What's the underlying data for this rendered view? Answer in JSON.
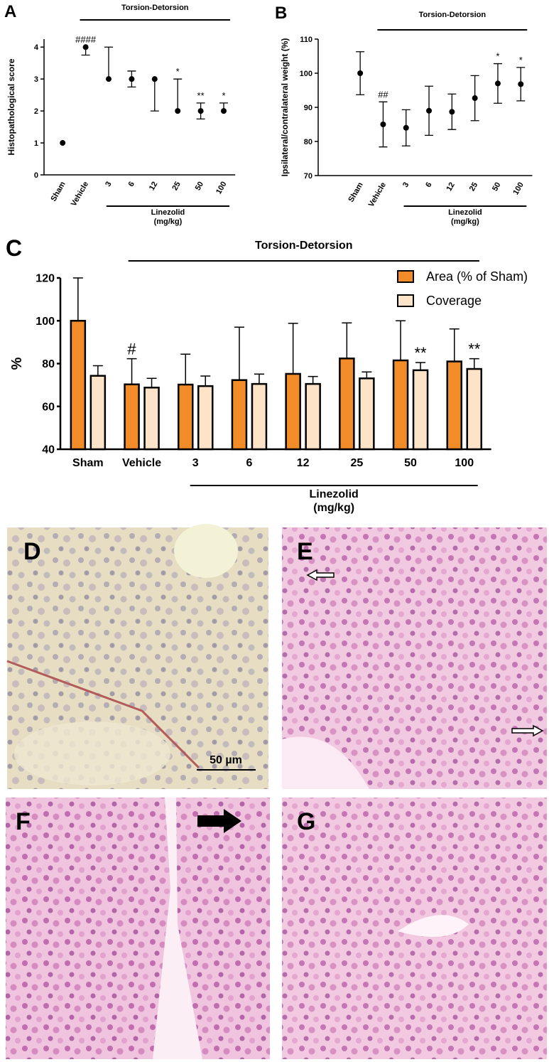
{
  "chart_data": [
    {
      "type": "scatter",
      "panel_label": "A",
      "title": "Torsion-Detorsion",
      "ylabel": "Histopathological score",
      "categories": [
        "Sham",
        "Vehicle",
        "3",
        "6",
        "12",
        "25",
        "50",
        "100"
      ],
      "values": [
        1,
        4,
        3,
        3,
        3,
        2,
        2,
        2
      ],
      "error_low": [
        0,
        0.25,
        0,
        0.25,
        1,
        0,
        0.25,
        0
      ],
      "error_high": [
        0,
        0,
        1,
        0.25,
        0,
        1,
        0.25,
        0.25
      ],
      "significance": [
        null,
        "####",
        null,
        null,
        null,
        "*",
        "**",
        "*"
      ],
      "group_label": [
        "Linezolid",
        "(mg/kg)"
      ],
      "ylim": [
        0,
        4.25
      ],
      "yticks": [
        0,
        1,
        2,
        3,
        4
      ],
      "color": "#000000"
    },
    {
      "type": "scatter",
      "panel_label": "B",
      "title": "Torsion-Detorsion",
      "ylabel": "Ipsilateral/contralateral weight (%)",
      "categories": [
        "Sham",
        "Vehicle",
        "3",
        "6",
        "12",
        "25",
        "50",
        "100"
      ],
      "values": [
        100,
        85,
        84,
        89,
        88.7,
        92.7,
        97,
        96.8
      ],
      "error_low": [
        6.3,
        6.6,
        5.3,
        7.2,
        5.2,
        6.6,
        5.8,
        4.9
      ],
      "error_high": [
        6.3,
        6.6,
        5.3,
        7.2,
        5.2,
        6.6,
        5.8,
        4.9
      ],
      "significance": [
        null,
        "##",
        null,
        null,
        null,
        null,
        "*",
        "*"
      ],
      "group_label": [
        "Linezolid",
        "(mg/kg)"
      ],
      "ylim": [
        70,
        110
      ],
      "yticks": [
        70,
        80,
        90,
        100,
        110
      ],
      "color": "#000000"
    },
    {
      "type": "bar",
      "panel_label": "C",
      "title": "Torsion-Detorsion",
      "ylabel": "%",
      "categories": [
        "Sham",
        "Vehicle",
        "3",
        "6",
        "12",
        "25",
        "50",
        "100"
      ],
      "series": [
        {
          "name": "Area (% of Sham)",
          "color": "#f28c28",
          "values": [
            100,
            70.3,
            70.2,
            72.3,
            75.2,
            82.4,
            81.5,
            81
          ],
          "errors": [
            20,
            12,
            14.2,
            24.7,
            23.6,
            16.6,
            18.5,
            15.2
          ],
          "significance": [
            null,
            "#",
            null,
            null,
            null,
            null,
            null,
            null
          ]
        },
        {
          "name": "Coverage",
          "color": "#fde3c8",
          "values": [
            74.3,
            68.8,
            69.5,
            70.5,
            70.5,
            73.1,
            76.9,
            77.5
          ],
          "errors": [
            4.7,
            4.3,
            4.7,
            4.6,
            3.5,
            3,
            3.6,
            4.8
          ],
          "significance": [
            null,
            null,
            null,
            null,
            null,
            null,
            "**",
            "**"
          ]
        }
      ],
      "group_label": [
        "Linezolid",
        "(mg/kg)"
      ],
      "ylim": [
        40,
        120
      ],
      "yticks": [
        40,
        60,
        80,
        100,
        120
      ],
      "legend": "upper right"
    }
  ],
  "panels": [
    {
      "label": "D",
      "scale_bar": "50 µm"
    },
    {
      "label": "E"
    },
    {
      "label": "F"
    },
    {
      "label": "G"
    }
  ]
}
